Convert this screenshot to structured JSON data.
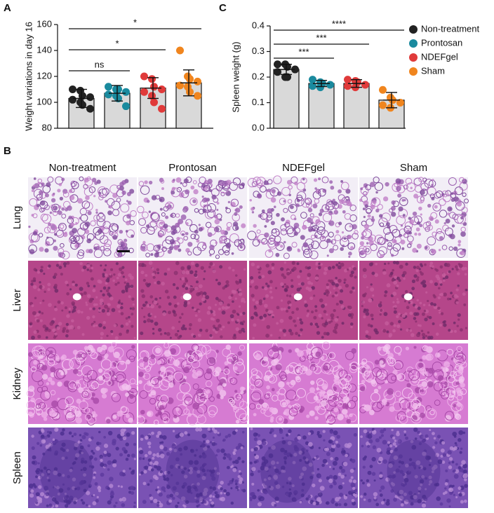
{
  "chart_data": [
    {
      "type": "bar",
      "panel": "A",
      "ylabel": "Weight variations in day 16",
      "ylim": [
        80,
        160
      ],
      "yticks": [
        80,
        100,
        120,
        140,
        160
      ],
      "bar_color": "#d9d9d9",
      "series": [
        {
          "name": "Non-treatment",
          "color": "#222222",
          "values": [
            103
          ],
          "errors": [
            7
          ],
          "points": [
            110,
            109,
            105,
            104,
            102,
            100,
            98,
            95
          ]
        },
        {
          "name": "Prontosan",
          "color": "#1a8a9e",
          "values": [
            107
          ],
          "errors": [
            6
          ],
          "points": [
            112,
            110,
            110,
            108,
            106,
            105,
            103,
            97
          ]
        },
        {
          "name": "NDEFgel",
          "color": "#e03a3a",
          "values": [
            111
          ],
          "errors": [
            8
          ],
          "points": [
            120,
            118,
            112,
            110,
            108,
            105,
            100,
            95
          ]
        },
        {
          "name": "Sham",
          "color": "#f0851e",
          "values": [
            115
          ],
          "errors": [
            10
          ],
          "points": [
            140,
            120,
            118,
            116,
            113,
            112,
            108,
            105
          ]
        }
      ],
      "comparisons": [
        {
          "between": [
            "Non-treatment",
            "Prontosan"
          ],
          "label": "ns"
        },
        {
          "between": [
            "Non-treatment",
            "NDEFgel"
          ],
          "label": "*"
        },
        {
          "between": [
            "Non-treatment",
            "Sham"
          ],
          "label": "*"
        }
      ]
    },
    {
      "type": "bar",
      "panel": "C",
      "ylabel": "Spleen weight (g)",
      "ylim": [
        0,
        0.4
      ],
      "yticks": [
        {
          "value": 0,
          "label": "0.0"
        },
        0.1,
        0.2,
        0.3,
        0.4
      ],
      "bar_color": "#d9d9d9",
      "legend": "right",
      "series": [
        {
          "name": "Non-treatment",
          "color": "#222222",
          "values": [
            0.23
          ],
          "errors": [
            0.02
          ],
          "points": [
            0.25,
            0.25,
            0.24,
            0.23,
            0.22,
            0.2,
            0.2
          ]
        },
        {
          "name": "Prontosan",
          "color": "#1a8a9e",
          "values": [
            0.175
          ],
          "errors": [
            0.012
          ],
          "points": [
            0.19,
            0.18,
            0.175,
            0.17,
            0.165,
            0.16
          ]
        },
        {
          "name": "NDEFgel",
          "color": "#e03a3a",
          "values": [
            0.175
          ],
          "errors": [
            0.015
          ],
          "points": [
            0.19,
            0.185,
            0.18,
            0.17,
            0.165,
            0.16
          ]
        },
        {
          "name": "Sham",
          "color": "#f0851e",
          "values": [
            0.11
          ],
          "errors": [
            0.03
          ],
          "points": [
            0.15,
            0.12,
            0.11,
            0.1,
            0.09,
            0.08
          ]
        }
      ],
      "comparisons": [
        {
          "between": [
            "Non-treatment",
            "Prontosan"
          ],
          "label": "***"
        },
        {
          "between": [
            "Non-treatment",
            "NDEFgel"
          ],
          "label": "***"
        },
        {
          "between": [
            "Non-treatment",
            "Sham"
          ],
          "label": "****"
        }
      ]
    }
  ],
  "panel_b": {
    "label": "B",
    "columns": [
      "Non-treatment",
      "Prontosan",
      "NDEFgel",
      "Sham"
    ],
    "rows": [
      "Lung",
      "Liver",
      "Kidney",
      "Spleen"
    ]
  }
}
